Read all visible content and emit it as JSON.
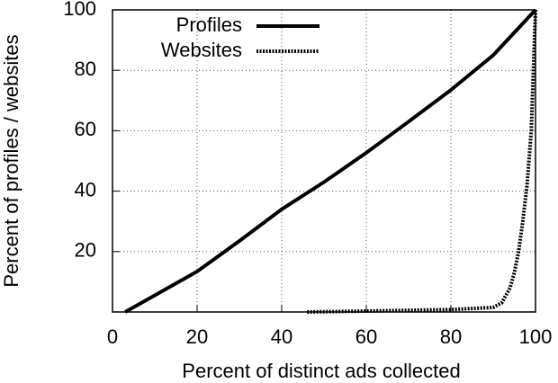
{
  "chart_data": {
    "type": "line",
    "xlabel": "Percent of distinct ads collected",
    "ylabel": "Percent of profiles / websites",
    "xlim": [
      0,
      100
    ],
    "ylim": [
      0,
      100
    ],
    "xticks": [
      0,
      20,
      40,
      60,
      80,
      100
    ],
    "yticks": [
      20,
      40,
      60,
      80,
      100
    ],
    "grid": true,
    "legend": "top-left",
    "series": [
      {
        "name": "Profiles",
        "color": "#000000",
        "dash": "solid",
        "x": [
          3,
          10,
          20,
          30,
          40,
          50,
          60,
          70,
          80,
          90,
          100
        ],
        "values": [
          0,
          5.5,
          13.4,
          23.5,
          34,
          43,
          52.7,
          63,
          73.5,
          85,
          100
        ]
      },
      {
        "name": "Websites",
        "color": "#000000",
        "dash": "dotted",
        "x": [
          46,
          60,
          80,
          90,
          92,
          94,
          95,
          96,
          97,
          98,
          99,
          99.5,
          100
        ],
        "values": [
          0,
          0.3,
          0.8,
          1.5,
          3,
          8,
          13,
          20,
          30,
          42,
          60,
          80,
          100
        ]
      }
    ]
  }
}
